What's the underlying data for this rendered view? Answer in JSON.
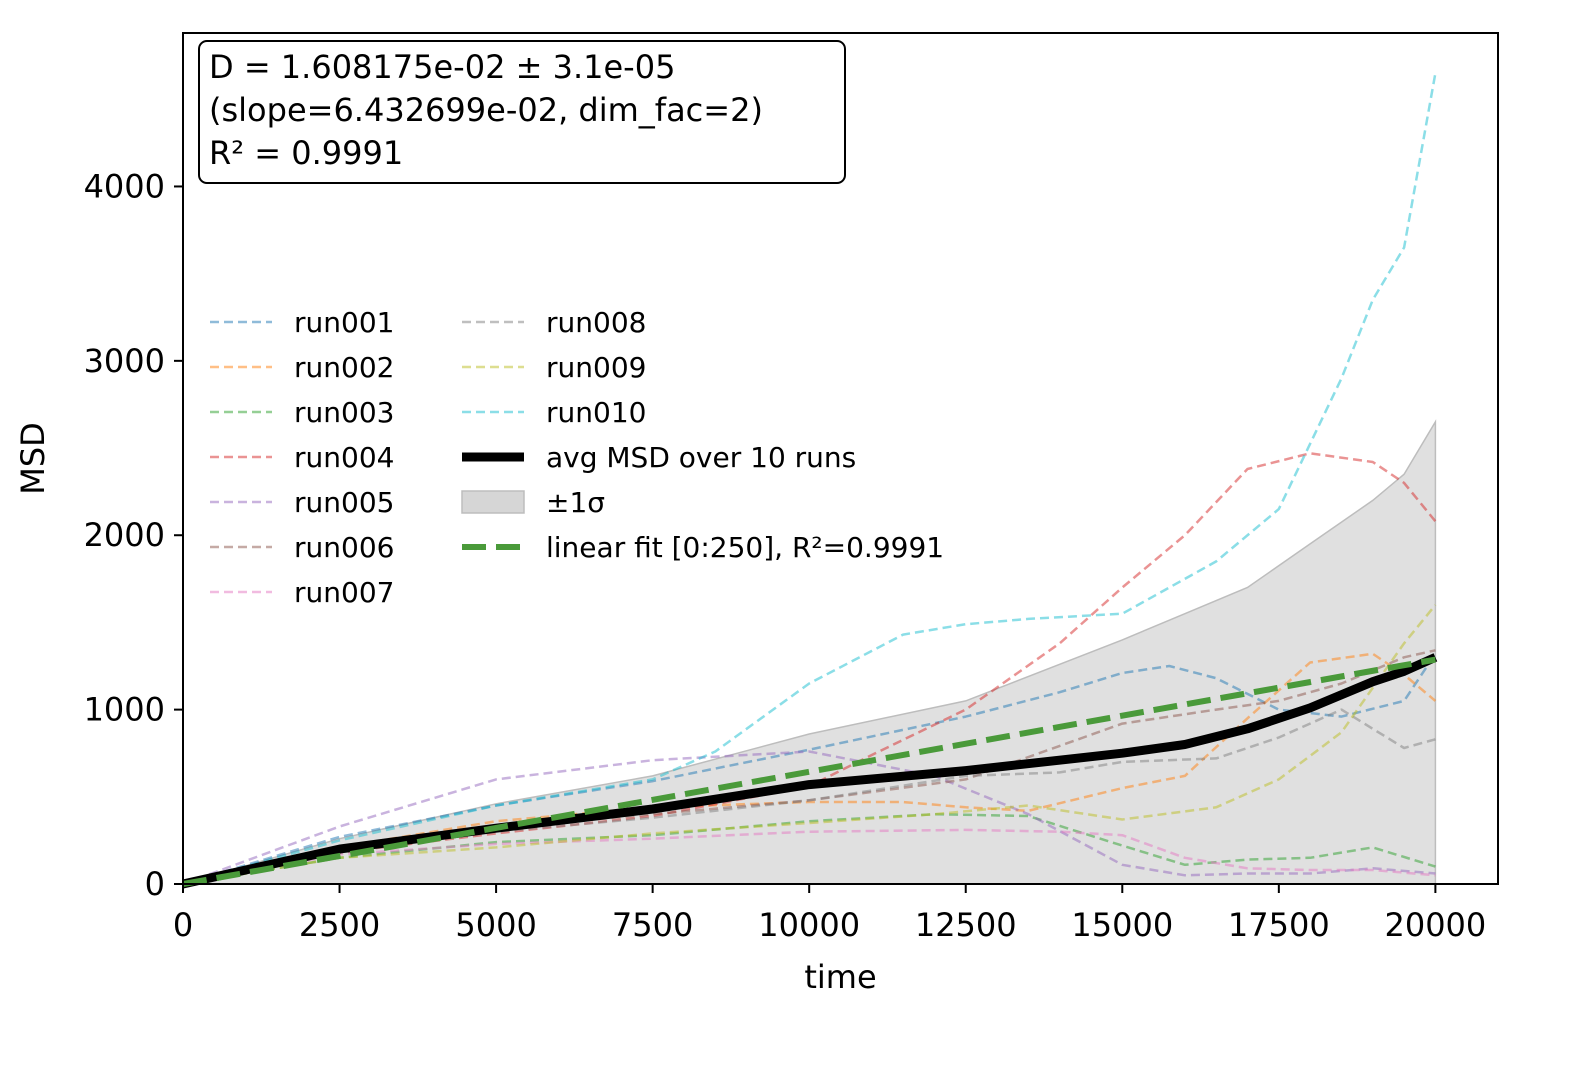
{
  "chart_data": {
    "type": "line",
    "title": "",
    "xlabel": "time",
    "ylabel": "MSD",
    "xlim": [
      0,
      21000
    ],
    "ylim": [
      0,
      4880
    ],
    "x_ticks": [
      0,
      2500,
      5000,
      7500,
      10000,
      12500,
      15000,
      17500,
      20000
    ],
    "y_ticks": [
      0,
      1000,
      2000,
      3000,
      4000
    ],
    "grid": false,
    "legend_position": "center-left",
    "annotation": {
      "lines": [
        "D = 1.608175e-02 ± 3.1e-05",
        "(slope=6.432699e-02, dim_fac=2)",
        "R² = 0.9991"
      ],
      "position": "top-left"
    },
    "series": [
      {
        "name": "run001",
        "color": "#1f77b4",
        "style": "dashed",
        "x": [
          0,
          2500,
          5000,
          7500,
          10000,
          12500,
          14000,
          15000,
          15750,
          16500,
          17500,
          18500,
          19500,
          20000
        ],
        "y": [
          0,
          270,
          450,
          590,
          770,
          960,
          1100,
          1210,
          1250,
          1180,
          1000,
          960,
          1050,
          1320
        ]
      },
      {
        "name": "run002",
        "color": "#ff7f0e",
        "style": "dashed",
        "x": [
          0,
          2500,
          5000,
          7500,
          10000,
          11500,
          12500,
          13500,
          15000,
          16000,
          17000,
          18000,
          19000,
          19500,
          20000
        ],
        "y": [
          0,
          210,
          360,
          440,
          470,
          470,
          440,
          420,
          550,
          620,
          950,
          1270,
          1320,
          1200,
          1050
        ]
      },
      {
        "name": "run003",
        "color": "#2ca02c",
        "style": "dashed",
        "x": [
          0,
          2500,
          5000,
          7500,
          10000,
          12000,
          13500,
          15000,
          16000,
          17000,
          18000,
          19000,
          20000
        ],
        "y": [
          0,
          150,
          240,
          280,
          360,
          400,
          390,
          220,
          110,
          140,
          150,
          210,
          100
        ]
      },
      {
        "name": "run004",
        "color": "#d62728",
        "style": "dashed",
        "x": [
          0,
          2500,
          5000,
          7500,
          10000,
          11000,
          12500,
          14000,
          15000,
          16000,
          17000,
          18000,
          19000,
          19500,
          20000
        ],
        "y": [
          0,
          180,
          290,
          390,
          560,
          740,
          1000,
          1380,
          1700,
          2000,
          2380,
          2470,
          2420,
          2300,
          2080
        ]
      },
      {
        "name": "run005",
        "color": "#9467bd",
        "style": "dashed",
        "x": [
          0,
          2500,
          5000,
          7500,
          10000,
          12000,
          13500,
          15000,
          16000,
          17000,
          18000,
          19000,
          20000
        ],
        "y": [
          0,
          330,
          600,
          710,
          760,
          620,
          400,
          110,
          50,
          60,
          60,
          90,
          60
        ]
      },
      {
        "name": "run006",
        "color": "#8c564b",
        "style": "dashed",
        "x": [
          0,
          2500,
          5000,
          7500,
          10000,
          12500,
          15000,
          16500,
          17500,
          18500,
          19500,
          20000
        ],
        "y": [
          0,
          190,
          320,
          400,
          480,
          600,
          920,
          1000,
          1050,
          1150,
          1300,
          1340
        ]
      },
      {
        "name": "run007",
        "color": "#e377c2",
        "style": "dashed",
        "x": [
          0,
          2500,
          5000,
          7500,
          10000,
          12500,
          14000,
          15000,
          16000,
          17000,
          18000,
          19000,
          20000
        ],
        "y": [
          0,
          170,
          230,
          260,
          300,
          310,
          300,
          280,
          150,
          90,
          80,
          80,
          50
        ]
      },
      {
        "name": "run008",
        "color": "#7f7f7f",
        "style": "dashed",
        "x": [
          0,
          2500,
          5000,
          7500,
          10000,
          12500,
          14000,
          15000,
          16500,
          17500,
          18500,
          19500,
          20000
        ],
        "y": [
          0,
          180,
          300,
          380,
          480,
          620,
          640,
          700,
          720,
          840,
          1000,
          780,
          830
        ]
      },
      {
        "name": "run009",
        "color": "#bcbd22",
        "style": "dashed",
        "x": [
          0,
          2500,
          5000,
          7500,
          10000,
          12000,
          13500,
          15000,
          16500,
          17500,
          18500,
          19500,
          20000
        ],
        "y": [
          0,
          150,
          210,
          290,
          350,
          400,
          450,
          370,
          440,
          600,
          870,
          1380,
          1600
        ]
      },
      {
        "name": "run010",
        "color": "#17becf",
        "style": "dashed",
        "x": [
          0,
          2500,
          5000,
          7500,
          8500,
          10000,
          11500,
          12500,
          13500,
          15000,
          16500,
          17500,
          18500,
          19000,
          19500,
          20000
        ],
        "y": [
          0,
          250,
          450,
          600,
          760,
          1150,
          1430,
          1490,
          1520,
          1550,
          1850,
          2150,
          2900,
          3350,
          3650,
          4650
        ]
      },
      {
        "name": "avg MSD over 10 runs",
        "color": "#000000",
        "style": "solid",
        "x": [
          0,
          2500,
          5000,
          7500,
          10000,
          12500,
          15000,
          16000,
          17000,
          18000,
          19000,
          19500,
          20000
        ],
        "y": [
          0,
          200,
          320,
          430,
          570,
          650,
          750,
          800,
          890,
          1010,
          1160,
          1220,
          1300
        ]
      },
      {
        "name": "±1σ",
        "color": "#bdbdbd",
        "style": "band",
        "x": [
          0,
          2500,
          5000,
          7500,
          10000,
          12500,
          15000,
          16000,
          17000,
          18000,
          19000,
          19500,
          20000
        ],
        "upper": [
          0,
          260,
          460,
          620,
          860,
          1050,
          1400,
          1550,
          1700,
          1950,
          2200,
          2350,
          2650
        ],
        "lower": [
          0,
          0,
          0,
          0,
          0,
          0,
          0,
          0,
          0,
          0,
          0,
          0,
          0
        ]
      },
      {
        "name": "linear fit [0:250], R²=0.9991",
        "color": "#4a9a3a",
        "style": "dashed-bold",
        "x": [
          0,
          20000
        ],
        "y": [
          0,
          1287
        ]
      }
    ],
    "legend_columns": [
      [
        "run001",
        "run002",
        "run003",
        "run004",
        "run005",
        "run006",
        "run007"
      ],
      [
        "run008",
        "run009",
        "run010",
        "avg MSD over 10 runs",
        "±1σ",
        "linear fit [0:250], R²=0.9991"
      ]
    ]
  }
}
